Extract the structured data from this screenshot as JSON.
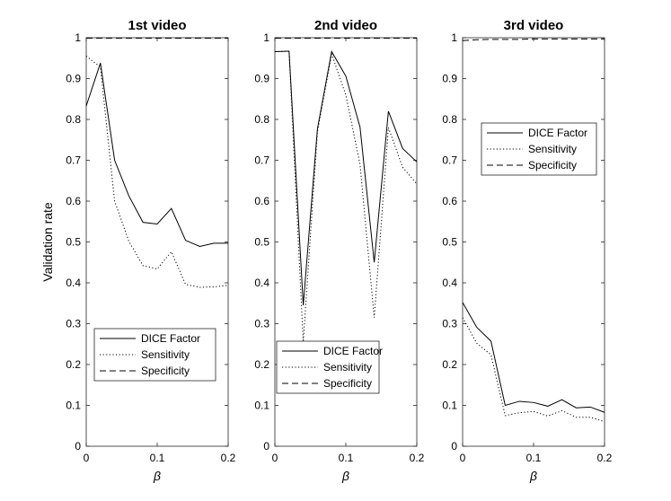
{
  "chart_data": [
    {
      "type": "line",
      "title": "1st video",
      "xlabel": "β",
      "ylabel": "Validation rate",
      "xlim": [
        0,
        0.2
      ],
      "ylim": [
        0,
        1
      ],
      "xticks": [
        "0",
        "0.1",
        "0.2"
      ],
      "yticks": [
        "0",
        "0.1",
        "0.2",
        "0.3",
        "0.4",
        "0.5",
        "0.6",
        "0.7",
        "0.8",
        "0.9",
        "1"
      ],
      "x": [
        0,
        0.02,
        0.04,
        0.06,
        0.08,
        0.1,
        0.12,
        0.14,
        0.16,
        0.18,
        0.2
      ],
      "series": [
        {
          "name": "DICE Factor",
          "style": "solid",
          "values": [
            0.833,
            0.938,
            0.7,
            0.613,
            0.548,
            0.544,
            0.582,
            0.504,
            0.489,
            0.497,
            0.497
          ]
        },
        {
          "name": "Sensitivity",
          "style": "dotted",
          "values": [
            0.955,
            0.928,
            0.6,
            0.502,
            0.442,
            0.434,
            0.476,
            0.396,
            0.389,
            0.39,
            0.394
          ]
        },
        {
          "name": "Specificity",
          "style": "dashed",
          "values": [
            0.999,
            0.999,
            0.999,
            0.999,
            0.999,
            0.999,
            0.999,
            0.999,
            0.999,
            0.999,
            0.999
          ]
        }
      ],
      "legend": "bottom-right"
    },
    {
      "type": "line",
      "title": "2nd video",
      "xlabel": "β",
      "ylabel": "",
      "xlim": [
        0,
        0.2
      ],
      "ylim": [
        0,
        1
      ],
      "xticks": [
        "0",
        "0.1",
        "0.2"
      ],
      "yticks": [
        "0",
        "0.1",
        "0.2",
        "0.3",
        "0.4",
        "0.5",
        "0.6",
        "0.7",
        "0.8",
        "0.9",
        "1"
      ],
      "x": [
        0,
        0.02,
        0.04,
        0.06,
        0.08,
        0.1,
        0.12,
        0.14,
        0.16,
        0.18,
        0.2
      ],
      "series": [
        {
          "name": "DICE Factor",
          "style": "solid",
          "values": [
            0.966,
            0.967,
            0.345,
            0.777,
            0.966,
            0.906,
            0.781,
            0.45,
            0.82,
            0.729,
            0.696
          ]
        },
        {
          "name": "Sensitivity",
          "style": "dotted",
          "values": [
            0.966,
            0.967,
            0.255,
            0.77,
            0.96,
            0.86,
            0.69,
            0.315,
            0.78,
            0.683,
            0.642
          ]
        },
        {
          "name": "Specificity",
          "style": "dashed",
          "values": [
            0.999,
            0.999,
            0.999,
            0.999,
            0.999,
            0.999,
            0.999,
            0.999,
            0.999,
            0.999,
            0.999
          ]
        }
      ],
      "legend": "bottom"
    },
    {
      "type": "line",
      "title": "3rd video",
      "xlabel": "β",
      "ylabel": "",
      "xlim": [
        0,
        0.2
      ],
      "ylim": [
        0,
        1
      ],
      "xticks": [
        "0",
        "0.1",
        "0.2"
      ],
      "yticks": [
        "0",
        "0.1",
        "0.2",
        "0.3",
        "0.4",
        "0.5",
        "0.6",
        "0.7",
        "0.8",
        "0.9",
        "1"
      ],
      "x": [
        0,
        0.02,
        0.04,
        0.06,
        0.08,
        0.1,
        0.12,
        0.14,
        0.16,
        0.18,
        0.2
      ],
      "series": [
        {
          "name": "DICE Factor",
          "style": "solid",
          "values": [
            0.352,
            0.291,
            0.257,
            0.1,
            0.11,
            0.107,
            0.098,
            0.114,
            0.094,
            0.096,
            0.083
          ]
        },
        {
          "name": "Sensitivity",
          "style": "dotted",
          "values": [
            0.315,
            0.252,
            0.224,
            0.075,
            0.082,
            0.085,
            0.074,
            0.087,
            0.071,
            0.071,
            0.06
          ]
        },
        {
          "name": "Specificity",
          "style": "dashed",
          "values": [
            0.993,
            0.995,
            0.996,
            0.996,
            0.996,
            0.997,
            0.997,
            0.997,
            0.997,
            0.997,
            0.997
          ]
        }
      ],
      "legend": "top-right"
    }
  ]
}
